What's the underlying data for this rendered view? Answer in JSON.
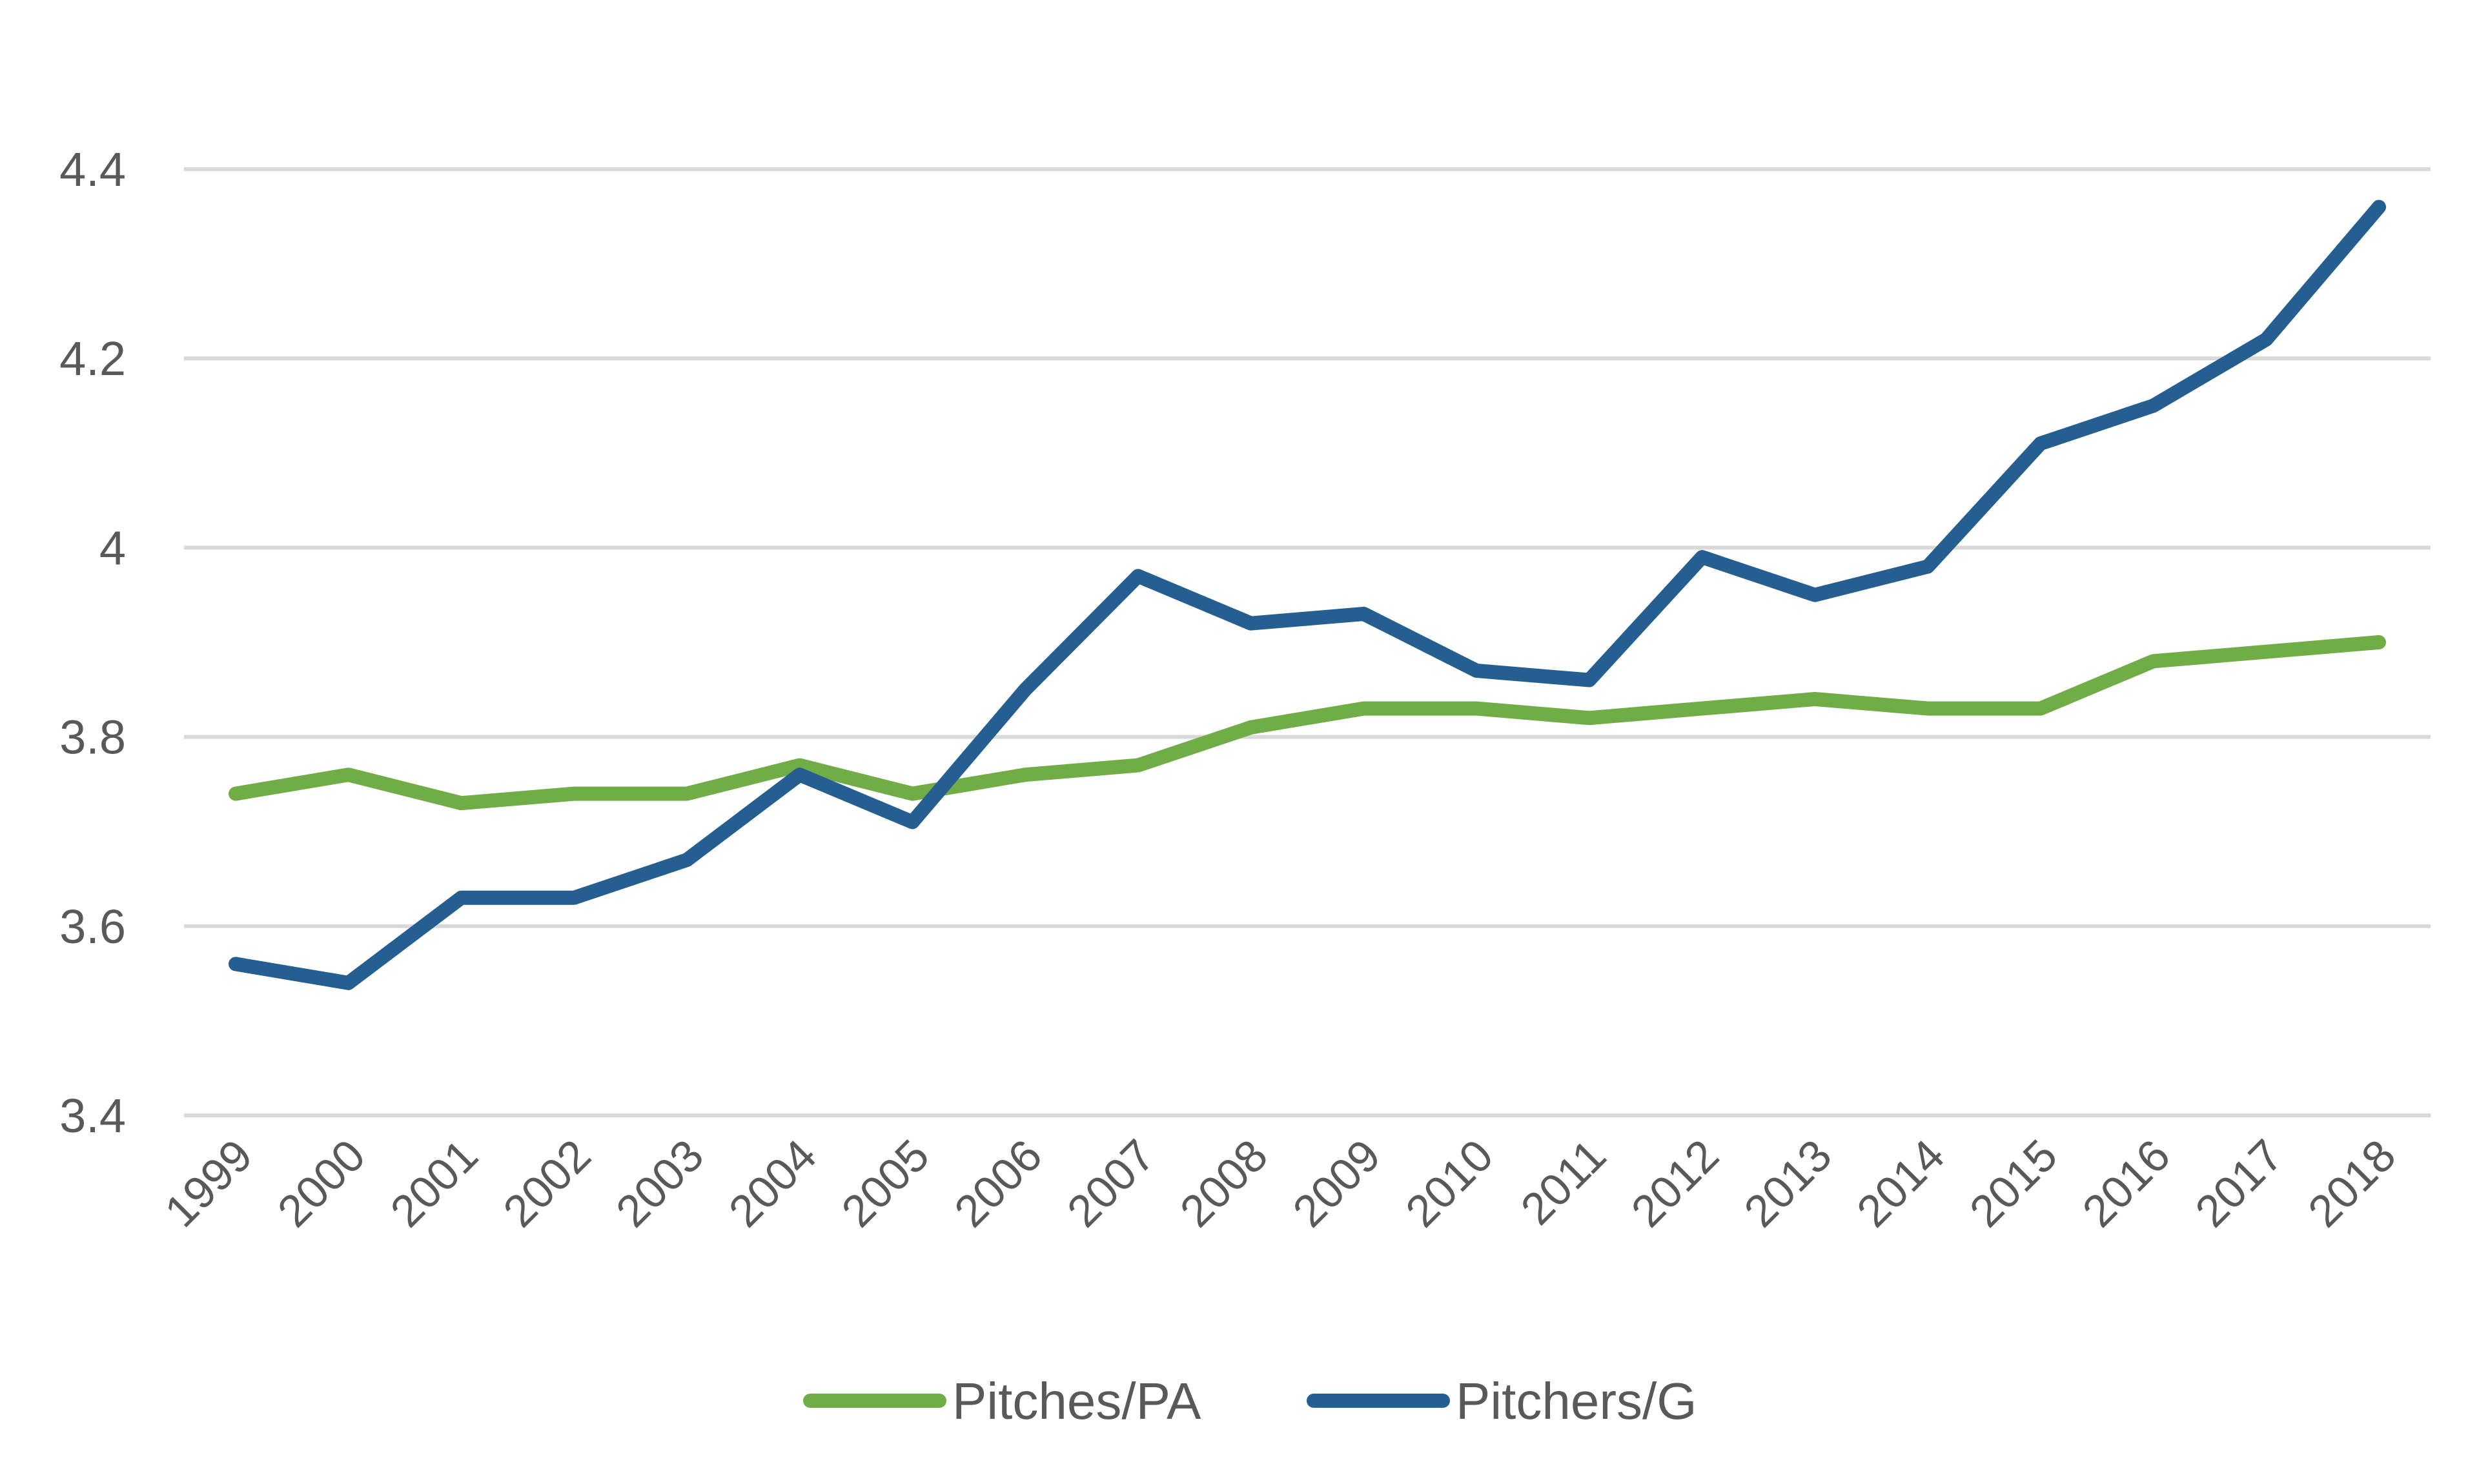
{
  "chart_data": {
    "type": "line",
    "title": "",
    "xlabel": "",
    "ylabel": "",
    "categories": [
      "1999",
      "2000",
      "2001",
      "2002",
      "2003",
      "2004",
      "2005",
      "2006",
      "2007",
      "2008",
      "2009",
      "2010",
      "2011",
      "2012",
      "2013",
      "2014",
      "2015",
      "2016",
      "2017",
      "2018"
    ],
    "ylim": [
      3.4,
      4.4
    ],
    "yticks": [
      "3.4",
      "3.6",
      "3.8",
      "4",
      "4.2",
      "4.4"
    ],
    "grid": true,
    "legend_position": "bottom",
    "series": [
      {
        "name": "Pitches/PA",
        "color": "#70ad47",
        "values": [
          3.74,
          3.76,
          3.73,
          3.74,
          3.74,
          3.77,
          3.74,
          3.76,
          3.77,
          3.81,
          3.83,
          3.83,
          3.82,
          3.83,
          3.84,
          3.83,
          3.83,
          3.88,
          3.89,
          3.9
        ]
      },
      {
        "name": "Pitchers/G",
        "color": "#255e91",
        "values": [
          3.56,
          3.54,
          3.63,
          3.63,
          3.67,
          3.76,
          3.71,
          3.85,
          3.97,
          3.92,
          3.93,
          3.87,
          3.86,
          3.99,
          3.95,
          3.98,
          4.11,
          4.15,
          4.22,
          4.36
        ]
      }
    ]
  }
}
